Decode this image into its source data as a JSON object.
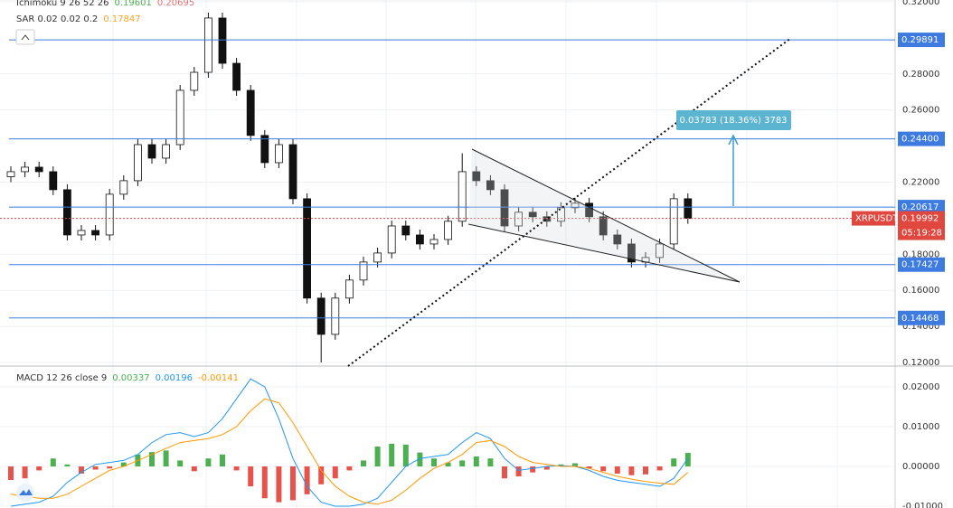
{
  "chart_data": [
    {
      "type": "candlestick",
      "indicators": [
        {
          "label": "Ichimoku 9 26 52 26",
          "values": [
            0.19601,
            0.20695
          ],
          "colors": [
            "#4caf50",
            "#e57373"
          ]
        },
        {
          "label": "SAR 0.02 0.02 0.2",
          "values": [
            0.17847
          ],
          "colors": [
            "#f5a623"
          ]
        }
      ],
      "open": [
        0.223,
        0.2258,
        0.2283,
        0.2258,
        0.2158,
        0.1907,
        0.1932,
        0.1907,
        0.2133,
        0.2208,
        0.2408,
        0.2333,
        0.2408,
        0.2709,
        0.2809,
        0.311,
        0.2859,
        0.2709,
        0.2459,
        0.2308,
        0.2408,
        0.2108,
        0.1557,
        0.1356,
        0.1557,
        0.1657,
        0.1757,
        0.1807,
        0.1957,
        0.1907,
        0.1857,
        0.1882,
        0.1983,
        0.2258,
        0.2208,
        0.2158,
        0.1957,
        0.2033,
        0.2008,
        0.1983,
        0.2058,
        0.2083,
        0.2008,
        0.1907,
        0.1857,
        0.1757,
        0.1782,
        0.1857,
        0.2108
      ],
      "high": [
        0.2288,
        0.2313,
        0.2313,
        0.2288,
        0.2188,
        0.1962,
        0.1962,
        0.2163,
        0.2238,
        0.2438,
        0.2438,
        0.2438,
        0.2739,
        0.2839,
        0.314,
        0.314,
        0.2889,
        0.2739,
        0.2489,
        0.2438,
        0.2438,
        0.2138,
        0.1587,
        0.1587,
        0.1687,
        0.1787,
        0.1837,
        0.1987,
        0.1987,
        0.1937,
        0.1912,
        0.2013,
        0.236,
        0.2288,
        0.2238,
        0.2188,
        0.2063,
        0.2063,
        0.2038,
        0.2088,
        0.2113,
        0.2113,
        0.2038,
        0.1937,
        0.1887,
        0.1812,
        0.1887,
        0.2138,
        0.2138
      ],
      "low": [
        0.22,
        0.2228,
        0.2228,
        0.2128,
        0.1877,
        0.1877,
        0.1877,
        0.1877,
        0.2103,
        0.2178,
        0.2303,
        0.2303,
        0.2378,
        0.2679,
        0.2779,
        0.2829,
        0.2679,
        0.2429,
        0.2278,
        0.2278,
        0.2078,
        0.1527,
        0.12,
        0.1326,
        0.1527,
        0.1627,
        0.1727,
        0.1777,
        0.1877,
        0.1827,
        0.1827,
        0.1852,
        0.1953,
        0.2178,
        0.2128,
        0.1927,
        0.1927,
        0.1978,
        0.1953,
        0.1953,
        0.2028,
        0.1978,
        0.1877,
        0.1827,
        0.1727,
        0.1727,
        0.1752,
        0.1827,
        0.1969
      ],
      "close": [
        0.2258,
        0.2283,
        0.2258,
        0.2158,
        0.1907,
        0.1932,
        0.1907,
        0.2133,
        0.2208,
        0.2408,
        0.2333,
        0.2408,
        0.2709,
        0.2809,
        0.311,
        0.2859,
        0.2709,
        0.2459,
        0.2308,
        0.2408,
        0.2108,
        0.1557,
        0.1356,
        0.1557,
        0.1657,
        0.1757,
        0.1807,
        0.1957,
        0.1907,
        0.1857,
        0.1882,
        0.1983,
        0.2258,
        0.2208,
        0.2158,
        0.1957,
        0.2033,
        0.2008,
        0.1983,
        0.2058,
        0.2083,
        0.2008,
        0.1907,
        0.1857,
        0.1757,
        0.1782,
        0.1857,
        0.2108,
        0.1999
      ],
      "up_color": "#ffffff",
      "down_color": "#111111",
      "ylim": [
        0.118,
        0.321
      ],
      "yticks": [
        {
          "value": 0.32,
          "label": "0.32000"
        },
        {
          "value": 0.28,
          "label": "0.28000"
        },
        {
          "value": 0.26,
          "label": "0.26000"
        },
        {
          "value": 0.22,
          "label": "0.22000"
        },
        {
          "value": 0.18,
          "label": "0.18000"
        },
        {
          "value": 0.16,
          "label": "0.16000"
        },
        {
          "value": 0.14,
          "label": "0.14000"
        },
        {
          "value": 0.12,
          "label": "0.12000"
        }
      ],
      "grid": true,
      "levels": [
        0.29891,
        {
          "value": 0.244,
          "label": "0.24400"
        },
        0.20617,
        0.17427,
        0.14468
      ],
      "level_color": "#3d7be0",
      "last_price": 0.19992,
      "last_price_color": "#e0483f",
      "symbol": "XRPUSDT",
      "countdown": "05:19:28",
      "measure_label": "0.03783 (18.36%) 3783"
    },
    {
      "type": "macd",
      "title": "MACD 12 26 close 9",
      "legend_values": [
        {
          "value": 0.00337,
          "color": "#4caf50"
        },
        {
          "value": 0.00196,
          "color": "#2196f3"
        },
        {
          "value": -0.00141,
          "color": "#ff9800"
        }
      ],
      "histogram": [
        -0.0034,
        -0.003,
        -0.001,
        0.002,
        0.0005,
        -0.0018,
        -0.0008,
        -0.0005,
        0.001,
        0.003,
        0.0036,
        0.004,
        0.0015,
        -0.0012,
        0.002,
        0.003,
        -0.001,
        -0.005,
        -0.008,
        -0.009,
        -0.0085,
        -0.007,
        -0.0045,
        -0.003,
        -0.001,
        0.0015,
        0.005,
        0.0057,
        0.0055,
        0.0035,
        0.002,
        0.001,
        0.0015,
        0.0025,
        0.002,
        -0.003,
        -0.0025,
        -0.0015,
        -0.0008,
        0.0005,
        0.0008,
        -0.0005,
        -0.0012,
        -0.0018,
        -0.0022,
        -0.002,
        -0.001,
        0.002,
        0.0034
      ],
      "up_color": "#4caf50",
      "down_color": "#e5534b",
      "series": [
        {
          "color": "#2196f3",
          "values": [
            -0.01,
            -0.0095,
            -0.009,
            -0.0075,
            -0.004,
            -0.0015,
            0.0005,
            0.001,
            0.0015,
            0.003,
            0.006,
            0.008,
            0.0085,
            0.0075,
            0.0085,
            0.012,
            0.017,
            0.022,
            0.02,
            0.012,
            0.002,
            -0.005,
            -0.009,
            -0.01,
            -0.01,
            -0.0095,
            -0.008,
            -0.004,
            0.0,
            0.002,
            0.0025,
            0.003,
            0.006,
            0.0085,
            0.007,
            0.002,
            -0.001,
            -0.0005,
            0.0,
            0.0002,
            0.0,
            -0.001,
            -0.0025,
            -0.0035,
            -0.004,
            -0.0045,
            -0.005,
            -0.003,
            0.002
          ]
        },
        {
          "color": "#ff9800",
          "values": [
            -0.007,
            -0.0075,
            -0.008,
            -0.008,
            -0.007,
            -0.005,
            -0.003,
            -0.001,
            0.0,
            0.0015,
            0.003,
            0.0045,
            0.006,
            0.0065,
            0.007,
            0.008,
            0.01,
            0.014,
            0.017,
            0.016,
            0.011,
            0.005,
            -0.001,
            -0.005,
            -0.0075,
            -0.009,
            -0.0095,
            -0.0085,
            -0.006,
            -0.003,
            -0.0005,
            0.001,
            0.003,
            0.006,
            0.0065,
            0.005,
            0.0025,
            0.001,
            0.0005,
            0.0,
            0.0,
            -0.0005,
            -0.0015,
            -0.0025,
            -0.0032,
            -0.0038,
            -0.0042,
            -0.0045,
            -0.0015
          ]
        }
      ],
      "ylim": [
        -0.01045,
        0.02523
      ],
      "yticks": [
        {
          "value": 0.02,
          "label": "0.02000"
        },
        {
          "value": 0.01,
          "label": "0.01000"
        },
        {
          "value": 0,
          "label": "0.00000"
        },
        {
          "value": -0.01,
          "label": "-0.01000"
        }
      ]
    }
  ]
}
